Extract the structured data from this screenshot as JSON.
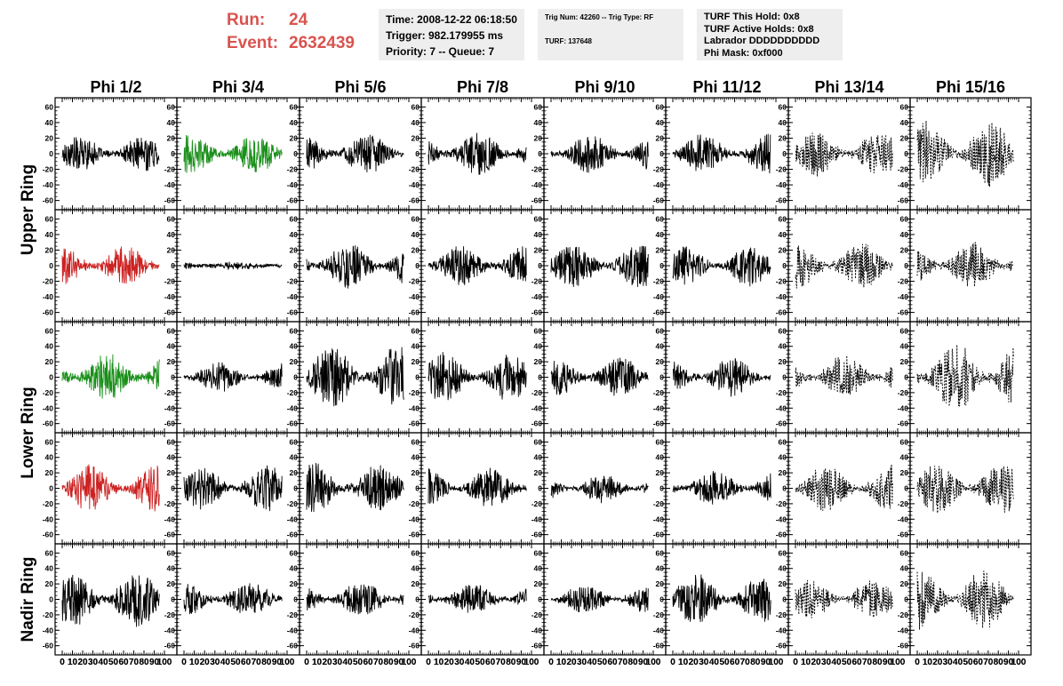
{
  "header": {
    "run_label": "Run:",
    "run_value": "24",
    "event_label": "Event:",
    "event_value": "2632439",
    "time_line": "Time: 2008-12-22 06:18:50",
    "trigger_line": "Trigger: 982.179955 ms",
    "priority_line": "Priority: 7 -- Queue: 7",
    "trig_line": "Trig Num: 42260 -- Trig Type: RF",
    "turf_line": "TURF: 137648",
    "turf_hold_line": "TURF This Hold: 0x8",
    "turf_active_line": "TURF Active Holds: 0x8",
    "labrador_line": "Labrador DDDDDDDDDD",
    "phi_mask_line": "Phi Mask: 0xf000"
  },
  "chart_data": {
    "type": "line",
    "title": "",
    "columns": [
      "Phi 1/2",
      "Phi 3/4",
      "Phi 5/6",
      "Phi 7/8",
      "Phi 9/10",
      "Phi 11/12",
      "Phi 13/14",
      "Phi 15/16"
    ],
    "rows": [
      "Upper Ring",
      "Lower Ring",
      "Nadir Ring"
    ],
    "xlim": [
      0,
      100
    ],
    "ylim": [
      -65,
      65
    ],
    "x_ticks": [
      0,
      10,
      20,
      30,
      40,
      50,
      60,
      70,
      80,
      90,
      100
    ],
    "x_tick_labels": [
      "0",
      "10",
      "20",
      "30",
      "40",
      "50",
      "60",
      "70",
      "80",
      "90",
      "100"
    ],
    "y_ticks": [
      -60,
      -40,
      -20,
      0,
      20,
      40,
      60
    ],
    "y_tick_labels": [
      "-60",
      "-40",
      "-20",
      "0",
      "20",
      "40",
      "60"
    ],
    "colors": {
      "black": "#000000",
      "green": "#1a8f1a",
      "red": "#cc2222"
    },
    "panels": [
      {
        "row": 0,
        "col": 0,
        "color": "black",
        "amp": 22,
        "style": "solid"
      },
      {
        "row": 0,
        "col": 1,
        "color": "green",
        "amp": 25,
        "style": "solid"
      },
      {
        "row": 0,
        "col": 2,
        "color": "black",
        "amp": 25,
        "style": "solid"
      },
      {
        "row": 0,
        "col": 3,
        "color": "black",
        "amp": 28,
        "style": "solid"
      },
      {
        "row": 0,
        "col": 4,
        "color": "black",
        "amp": 25,
        "style": "solid"
      },
      {
        "row": 0,
        "col": 5,
        "color": "black",
        "amp": 25,
        "style": "solid"
      },
      {
        "row": 0,
        "col": 6,
        "color": "black",
        "amp": 28,
        "style": "dashed"
      },
      {
        "row": 0,
        "col": 7,
        "color": "black",
        "amp": 42,
        "style": "dashed"
      },
      {
        "row": 1,
        "col": 0,
        "color": "red",
        "amp": 25,
        "style": "solid"
      },
      {
        "row": 1,
        "col": 1,
        "color": "black",
        "amp": 4,
        "style": "solid"
      },
      {
        "row": 1,
        "col": 2,
        "color": "black",
        "amp": 30,
        "style": "solid"
      },
      {
        "row": 1,
        "col": 3,
        "color": "black",
        "amp": 25,
        "style": "solid"
      },
      {
        "row": 1,
        "col": 4,
        "color": "black",
        "amp": 28,
        "style": "solid"
      },
      {
        "row": 1,
        "col": 5,
        "color": "black",
        "amp": 25,
        "style": "solid"
      },
      {
        "row": 1,
        "col": 6,
        "color": "black",
        "amp": 30,
        "style": "dashed"
      },
      {
        "row": 1,
        "col": 7,
        "color": "black",
        "amp": 30,
        "style": "dashed"
      },
      {
        "row": 2,
        "col": 0,
        "color": "green",
        "amp": 32,
        "style": "solid"
      },
      {
        "row": 2,
        "col": 1,
        "color": "black",
        "amp": 18,
        "style": "solid"
      },
      {
        "row": 2,
        "col": 2,
        "color": "black",
        "amp": 40,
        "style": "solid"
      },
      {
        "row": 2,
        "col": 3,
        "color": "black",
        "amp": 32,
        "style": "solid"
      },
      {
        "row": 2,
        "col": 4,
        "color": "black",
        "amp": 25,
        "style": "solid"
      },
      {
        "row": 2,
        "col": 5,
        "color": "black",
        "amp": 25,
        "style": "solid"
      },
      {
        "row": 2,
        "col": 6,
        "color": "black",
        "amp": 28,
        "style": "dashed"
      },
      {
        "row": 2,
        "col": 7,
        "color": "black",
        "amp": 45,
        "style": "dashed"
      },
      {
        "row": 3,
        "col": 0,
        "color": "red",
        "amp": 30,
        "style": "solid"
      },
      {
        "row": 3,
        "col": 1,
        "color": "black",
        "amp": 28,
        "style": "solid"
      },
      {
        "row": 3,
        "col": 2,
        "color": "black",
        "amp": 32,
        "style": "solid"
      },
      {
        "row": 3,
        "col": 3,
        "color": "black",
        "amp": 25,
        "style": "solid"
      },
      {
        "row": 3,
        "col": 4,
        "color": "black",
        "amp": 18,
        "style": "solid"
      },
      {
        "row": 3,
        "col": 5,
        "color": "black",
        "amp": 22,
        "style": "solid"
      },
      {
        "row": 3,
        "col": 6,
        "color": "black",
        "amp": 30,
        "style": "dashed"
      },
      {
        "row": 3,
        "col": 7,
        "color": "black",
        "amp": 32,
        "style": "dashed"
      },
      {
        "row": 4,
        "col": 0,
        "color": "black",
        "amp": 35,
        "style": "solid"
      },
      {
        "row": 4,
        "col": 1,
        "color": "black",
        "amp": 22,
        "style": "solid"
      },
      {
        "row": 4,
        "col": 2,
        "color": "black",
        "amp": 22,
        "style": "solid"
      },
      {
        "row": 4,
        "col": 3,
        "color": "black",
        "amp": 20,
        "style": "solid"
      },
      {
        "row": 4,
        "col": 4,
        "color": "black",
        "amp": 18,
        "style": "solid"
      },
      {
        "row": 4,
        "col": 5,
        "color": "black",
        "amp": 32,
        "style": "solid"
      },
      {
        "row": 4,
        "col": 6,
        "color": "black",
        "amp": 25,
        "style": "dashed"
      },
      {
        "row": 4,
        "col": 7,
        "color": "black",
        "amp": 40,
        "style": "dashed"
      }
    ]
  }
}
